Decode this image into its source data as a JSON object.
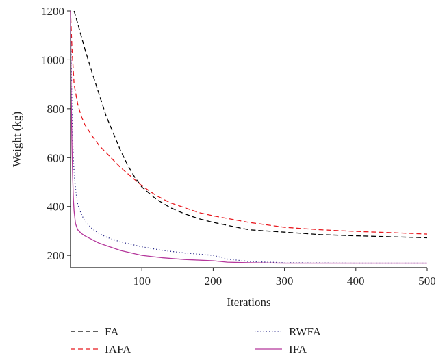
{
  "chart_data": {
    "type": "line",
    "title": "",
    "xlabel": "Iterations",
    "ylabel": "Weight (kg)",
    "xlim": [
      0,
      500
    ],
    "ylim": [
      150,
      1200
    ],
    "xticks": [
      100,
      200,
      300,
      400,
      500
    ],
    "yticks": [
      200,
      400,
      600,
      800,
      1000,
      1200
    ],
    "grid": false,
    "legend_position": "bottom",
    "series": [
      {
        "name": "FA",
        "color": "#000000",
        "dash": "dashed",
        "x": [
          5,
          10,
          20,
          30,
          40,
          50,
          60,
          70,
          80,
          90,
          100,
          120,
          140,
          160,
          180,
          200,
          250,
          300,
          350,
          400,
          450,
          500
        ],
        "y": [
          1200,
          1150,
          1045,
          950,
          860,
          770,
          700,
          630,
          570,
          520,
          480,
          430,
          395,
          370,
          350,
          335,
          305,
          295,
          285,
          280,
          276,
          272
        ]
      },
      {
        "name": "IAFA",
        "color": "#e8191f",
        "dash": "dashed",
        "x": [
          0,
          2,
          5,
          10,
          15,
          20,
          30,
          40,
          50,
          60,
          70,
          80,
          90,
          100,
          120,
          140,
          160,
          180,
          200,
          250,
          300,
          350,
          400,
          450,
          500
        ],
        "y": [
          1200,
          1050,
          900,
          820,
          770,
          735,
          690,
          650,
          620,
          590,
          560,
          535,
          510,
          485,
          445,
          415,
          395,
          375,
          362,
          335,
          315,
          305,
          298,
          293,
          287
        ]
      },
      {
        "name": "RWFA",
        "color": "#2a2a8a",
        "dash": "dotted",
        "x": [
          0,
          1,
          2,
          3,
          4,
          6,
          8,
          10,
          15,
          20,
          30,
          40,
          50,
          70,
          100,
          130,
          160,
          200,
          220,
          250,
          300,
          400,
          500
        ],
        "y": [
          1200,
          1000,
          800,
          680,
          590,
          500,
          450,
          410,
          370,
          340,
          310,
          290,
          275,
          255,
          235,
          220,
          210,
          200,
          185,
          175,
          170,
          168,
          168
        ]
      },
      {
        "name": "IFA",
        "color": "#b4369b",
        "dash": "solid",
        "x": [
          0,
          0.5,
          1,
          2,
          3,
          4,
          5,
          7,
          10,
          15,
          20,
          30,
          40,
          50,
          70,
          100,
          130,
          160,
          200,
          220,
          250,
          300,
          400,
          500
        ],
        "y": [
          1200,
          1050,
          850,
          650,
          520,
          430,
          380,
          330,
          305,
          290,
          280,
          265,
          250,
          240,
          220,
          200,
          190,
          183,
          178,
          172,
          170,
          168,
          168,
          168
        ]
      }
    ]
  }
}
